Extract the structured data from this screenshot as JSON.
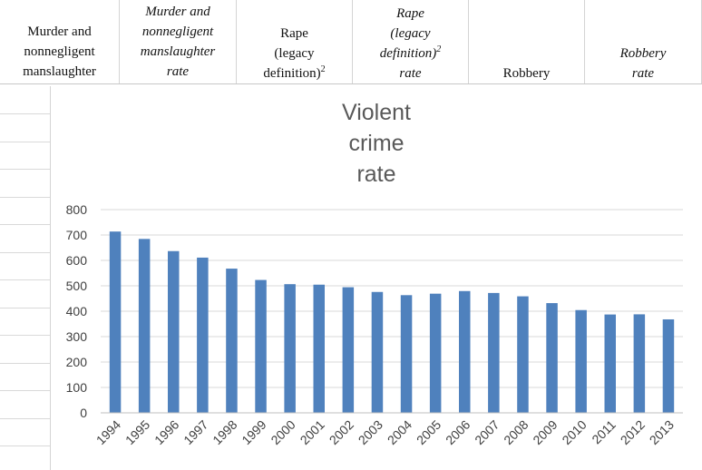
{
  "spreadsheet": {
    "header_cells": [
      {
        "lines": [
          "Murder and",
          "nonnegligent",
          "manslaughter"
        ],
        "italic": false
      },
      {
        "lines": [
          "Murder and",
          "nonnegligent",
          "manslaughter",
          "rate"
        ],
        "italic": true
      },
      {
        "lines": [
          "Rape",
          "(legacy",
          "definition)"
        ],
        "sup": "2",
        "italic": false
      },
      {
        "lines": [
          "Rape",
          "(legacy",
          "definition)",
          "rate"
        ],
        "sup": "2",
        "italic": true
      },
      {
        "lines": [
          "Robbery"
        ],
        "italic": false
      },
      {
        "lines": [
          "Robbery",
          "rate"
        ],
        "italic": true
      }
    ]
  },
  "chart_data": {
    "type": "bar",
    "title_lines": [
      "Violent",
      "crime",
      "rate"
    ],
    "title": "Violent crime rate",
    "categories": [
      "1994",
      "1995",
      "1996",
      "1997",
      "1998",
      "1999",
      "2000",
      "2001",
      "2002",
      "2003",
      "2004",
      "2005",
      "2006",
      "2007",
      "2008",
      "2009",
      "2010",
      "2011",
      "2012",
      "2013"
    ],
    "values": [
      713.6,
      684.5,
      636.6,
      611.0,
      567.6,
      523.0,
      506.5,
      504.5,
      494.4,
      475.8,
      463.2,
      469.0,
      479.3,
      471.8,
      458.6,
      431.9,
      404.5,
      387.1,
      387.8,
      367.9
    ],
    "ylim": [
      0,
      800
    ],
    "yticks": [
      0,
      100,
      200,
      300,
      400,
      500,
      600,
      700,
      800
    ],
    "grid": true,
    "bar_color": "#4f81bd",
    "grid_color": "#d9d9d9",
    "xlabel": "",
    "ylabel": ""
  }
}
